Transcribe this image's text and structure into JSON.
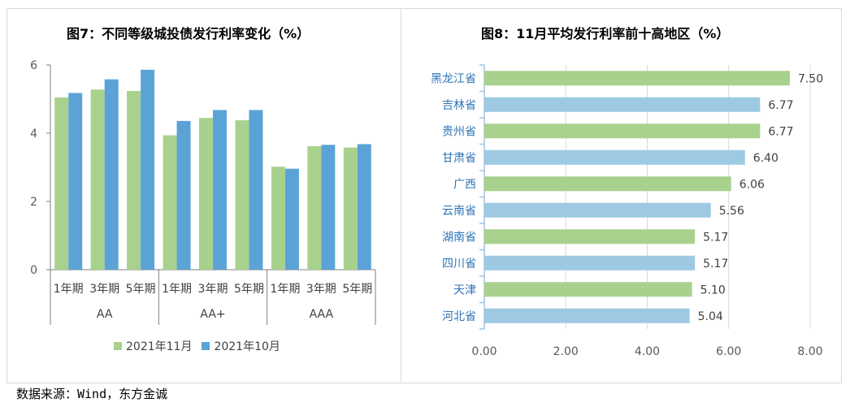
{
  "left_title": "图7：不同等级城投债发行利率变化（%）",
  "right_title": "图8：11月平均发行利率前十高地区（%）",
  "source": "数据来源：Wind，东方金诚",
  "colors": {
    "green": "#a9d18e",
    "blue": "#5ba3d6",
    "lightblue": "#9dc9e3",
    "axis": "#7f7f7f",
    "right_axis": "#9dc3e6"
  },
  "chart_data": [
    {
      "type": "bar",
      "title": "图7：不同等级城投债发行利率变化（%）",
      "categories": [
        "1年期",
        "3年期",
        "5年期",
        "1年期",
        "3年期",
        "5年期",
        "1年期",
        "3年期",
        "5年期"
      ],
      "groups": [
        {
          "label": "AA",
          "categories": [
            "1年期",
            "3年期",
            "5年期"
          ]
        },
        {
          "label": "AA+",
          "categories": [
            "1年期",
            "3年期",
            "5年期"
          ]
        },
        {
          "label": "AAA",
          "categories": [
            "1年期",
            "3年期",
            "5年期"
          ]
        }
      ],
      "series": [
        {
          "name": "2021年11月",
          "values": [
            5.05,
            5.28,
            5.24,
            3.94,
            4.45,
            4.38,
            3.02,
            3.62,
            3.58
          ]
        },
        {
          "name": "2021年10月",
          "values": [
            5.18,
            5.58,
            5.86,
            4.36,
            4.68,
            4.68,
            2.96,
            3.66,
            3.68
          ]
        }
      ],
      "yticks": [
        "0",
        "2",
        "4",
        "6"
      ],
      "ylim": [
        0,
        6
      ],
      "legend": "bottom"
    },
    {
      "type": "bar",
      "orientation": "horizontal",
      "title": "图8：11月平均发行利率前十高地区（%）",
      "categories": [
        "黑龙江省",
        "吉林省",
        "贵州省",
        "甘肃省",
        "广西",
        "云南省",
        "湖南省",
        "四川省",
        "天津",
        "河北省"
      ],
      "values": [
        7.5,
        6.77,
        6.77,
        6.4,
        6.06,
        5.56,
        5.17,
        5.17,
        5.1,
        5.04
      ],
      "labels": [
        "7.50",
        "6.77",
        "6.77",
        "6.40",
        "6.06",
        "5.56",
        "5.17",
        "5.17",
        "5.10",
        "5.04"
      ],
      "xticks": [
        "0.00",
        "2.00",
        "4.00",
        "6.00",
        "8.00"
      ],
      "xlim": [
        0,
        8
      ],
      "grid": true
    }
  ]
}
